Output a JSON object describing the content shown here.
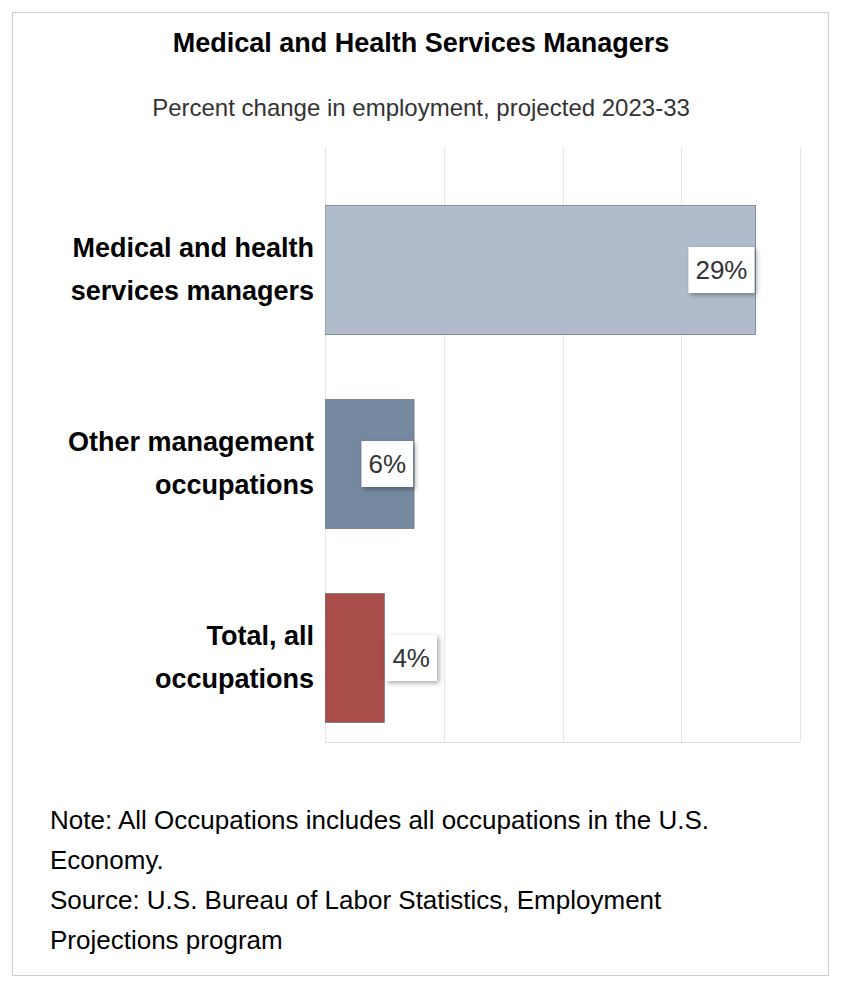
{
  "chart_data": {
    "type": "bar",
    "orientation": "horizontal",
    "title": "Medical and Health Services Managers",
    "subtitle": "Percent change in employment, projected 2023-33",
    "categories": [
      "Medical and health services managers",
      "Other management occupations",
      "Total, all occupations"
    ],
    "values": [
      29,
      6,
      4
    ],
    "value_labels": [
      "29%",
      "6%",
      "4%"
    ],
    "colors": [
      "#b0bccb",
      "#7689a1",
      "#a84d4a"
    ],
    "xlim": [
      0,
      32
    ],
    "xticks": [
      0,
      8,
      16,
      24,
      32
    ],
    "grid": true,
    "tick_labels": false,
    "data_labels": true,
    "notes": [
      "Note: All Occupations includes all occupations in the U.S. Economy.",
      "Source: U.S. Bureau of Labor Statistics, Employment Projections program"
    ]
  }
}
